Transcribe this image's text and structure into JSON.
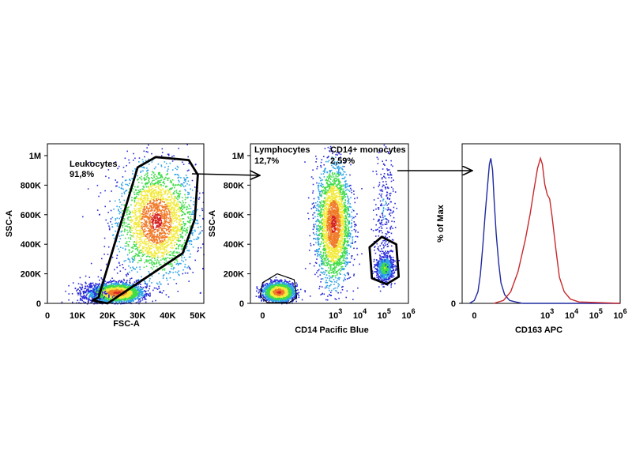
{
  "figure": {
    "connector_color": "#000000",
    "density_colors": [
      "#2b2bd9",
      "#2fa4e7",
      "#3fdc4a",
      "#f2ea3c",
      "#f07b2a",
      "#d42424"
    ]
  },
  "chart_data": [
    {
      "type": "scatter",
      "subtype": "flow-cytometry density dot plot",
      "xlabel": "FSC-A",
      "ylabel": "SSC-A",
      "xlim": [
        0,
        52000
      ],
      "ylim": [
        0,
        1080000
      ],
      "x_ticks": [
        {
          "value": 0,
          "label": "0"
        },
        {
          "value": 10000,
          "label": "10K"
        },
        {
          "value": 20000,
          "label": "20K"
        },
        {
          "value": 30000,
          "label": "30K"
        },
        {
          "value": 40000,
          "label": "40K"
        },
        {
          "value": 50000,
          "label": "50K"
        }
      ],
      "y_ticks": [
        {
          "value": 0,
          "label": "0"
        },
        {
          "value": 200000,
          "label": "200K"
        },
        {
          "value": 400000,
          "label": "400K"
        },
        {
          "value": 600000,
          "label": "600K"
        },
        {
          "value": 800000,
          "label": "800K"
        },
        {
          "value": 1000000,
          "label": "1M"
        }
      ],
      "populations": [
        {
          "x_center": 36000,
          "y_center": 560000,
          "x_spread": 6500,
          "y_spread": 190000,
          "density": "high"
        },
        {
          "x_center": 23000,
          "y_center": 75000,
          "x_spread": 4000,
          "y_spread": 30000,
          "density": "high"
        },
        {
          "x_center": 14000,
          "y_center": 60000,
          "x_spread": 3000,
          "y_spread": 50000,
          "density": "low"
        }
      ],
      "gates": [
        {
          "name": "Leukocytes",
          "value": "91,8%",
          "polygon": [
            [
              17000,
              40000
            ],
            [
              30000,
              920000
            ],
            [
              36000,
              990000
            ],
            [
              47000,
              970000
            ],
            [
              50000,
              870000
            ],
            [
              49000,
              570000
            ],
            [
              45000,
              340000
            ],
            [
              20000,
              0
            ],
            [
              15000,
              20000
            ]
          ]
        }
      ]
    },
    {
      "type": "scatter",
      "subtype": "flow-cytometry density dot plot",
      "xlabel": "CD14 Pacific Blue",
      "ylabel": "SSC-A",
      "x_scale": "log",
      "xlim": [
        -0.5,
        6
      ],
      "ylim": [
        0,
        1080000
      ],
      "x_ticks": [
        {
          "value": 0,
          "label": "0"
        },
        {
          "value": 3,
          "base": "10",
          "exp": "3"
        },
        {
          "value": 4,
          "base": "10",
          "exp": "4"
        },
        {
          "value": 5,
          "base": "10",
          "exp": "5"
        },
        {
          "value": 6,
          "base": "10",
          "exp": "6"
        }
      ],
      "y_ticks": [
        {
          "value": 0,
          "label": "0"
        },
        {
          "value": 200000,
          "label": "200K"
        },
        {
          "value": 400000,
          "label": "400K"
        },
        {
          "value": 600000,
          "label": "600K"
        },
        {
          "value": 800000,
          "label": "800K"
        },
        {
          "value": 1000000,
          "label": "1M"
        }
      ],
      "populations": [
        {
          "x_center": 2.9,
          "y_center": 540000,
          "x_spread": 0.35,
          "y_spread": 200000,
          "density": "high"
        },
        {
          "x_center": 0.65,
          "y_center": 80000,
          "x_spread": 0.3,
          "y_spread": 30000,
          "density": "high"
        },
        {
          "x_center": 5.0,
          "y_center": 240000,
          "x_spread": 0.18,
          "y_spread": 45000,
          "density": "medium"
        },
        {
          "x_center": 5.0,
          "y_center": 650000,
          "x_spread": 0.2,
          "y_spread": 220000,
          "density": "low"
        }
      ],
      "gates": [
        {
          "name": "Lymphocytes",
          "value": "12,7%",
          "polygon": [
            [
              0.0,
              140000
            ],
            [
              0.6,
              200000
            ],
            [
              1.3,
              160000
            ],
            [
              1.4,
              40000
            ],
            [
              1.1,
              5000
            ],
            [
              0.2,
              5000
            ],
            [
              -0.1,
              50000
            ]
          ]
        },
        {
          "name": "CD14+ monocytes",
          "value": "2,59%",
          "polygon": [
            [
              4.4,
              380000
            ],
            [
              4.9,
              450000
            ],
            [
              5.5,
              400000
            ],
            [
              5.6,
              180000
            ],
            [
              5.1,
              130000
            ],
            [
              4.5,
              170000
            ]
          ]
        }
      ]
    },
    {
      "type": "line",
      "subtype": "histogram overlay",
      "xlabel": "CD163 APC",
      "ylabel": "% of Max",
      "x_scale": "log",
      "xlim": [
        -0.5,
        6
      ],
      "ylim": [
        0,
        110
      ],
      "x_ticks": [
        {
          "value": 0,
          "label": "0"
        },
        {
          "value": 3,
          "base": "10",
          "exp": "3"
        },
        {
          "value": 4,
          "base": "10",
          "exp": "4"
        },
        {
          "value": 5,
          "base": "10",
          "exp": "5"
        },
        {
          "value": 6,
          "base": "10",
          "exp": "6"
        }
      ],
      "y_ticks": [
        {
          "value": 0,
          "label": "0"
        }
      ],
      "series": [
        {
          "color": "#1f2a9e",
          "x": [
            -0.2,
            0.0,
            0.15,
            0.25,
            0.35,
            0.45,
            0.55,
            0.62,
            0.68,
            0.75,
            0.82,
            0.9,
            1.0,
            1.1,
            1.25,
            1.45,
            1.7,
            2.0,
            6.0
          ],
          "y": [
            0,
            2,
            8,
            20,
            40,
            62,
            82,
            96,
            100,
            92,
            70,
            48,
            28,
            14,
            6,
            2,
            1,
            0,
            0
          ]
        },
        {
          "color": "#c8282c",
          "x": [
            0.8,
            1.2,
            1.5,
            1.8,
            2.1,
            2.3,
            2.45,
            2.6,
            2.72,
            2.8,
            2.9,
            3.0,
            3.1,
            3.2,
            3.35,
            3.5,
            3.7,
            3.95,
            4.3,
            6.0
          ],
          "y": [
            0,
            2,
            8,
            22,
            44,
            62,
            78,
            93,
            100,
            96,
            82,
            75,
            72,
            60,
            38,
            18,
            8,
            3,
            1,
            0
          ]
        }
      ]
    }
  ]
}
